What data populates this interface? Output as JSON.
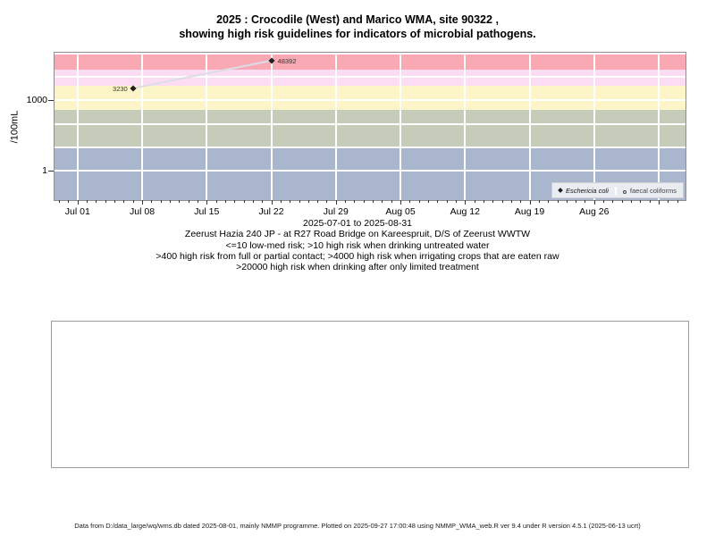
{
  "chart_data": {
    "type": "scatter",
    "title_line1": "2025 : Crocodile (West) and Marico WMA, site 90322 ,",
    "title_line2": "showing high risk guidelines for indicators of microbial pathogens.",
    "ylabel": "/100mL",
    "xlabel": "2025-07-01 to 2025-08-31",
    "y_scale": "log10",
    "y_domain_log10": [
      -1.24,
      5.02
    ],
    "x_domain_days": [
      -2.5,
      65.9
    ],
    "grid": "on",
    "grid_decades_log10": [
      0,
      1,
      2,
      3,
      4,
      5
    ],
    "y_ticks": [
      {
        "value": 1000,
        "label": "1000"
      },
      {
        "value": 1,
        "label": "1"
      }
    ],
    "x_ticks": [
      {
        "day": 0,
        "label": "Jul 01"
      },
      {
        "day": 7,
        "label": "Jul 08"
      },
      {
        "day": 14,
        "label": "Jul 15"
      },
      {
        "day": 21,
        "label": "Jul 22"
      },
      {
        "day": 28,
        "label": "Jul 29"
      },
      {
        "day": 35,
        "label": "Aug 05"
      },
      {
        "day": 42,
        "label": "Aug 12"
      },
      {
        "day": 49,
        "label": "Aug 19"
      },
      {
        "day": 56,
        "label": "Aug 26"
      },
      {
        "day": 63,
        "label": ""
      }
    ],
    "risk_bands": [
      {
        "range": "<=10 low-med risk",
        "from": null,
        "to": 10,
        "color": "#a9b6ce"
      },
      {
        "range": ">10 high risk drinking untreated water",
        "from": 10,
        "to": 400,
        "color": "#c5ccb9"
      },
      {
        "range": ">400 high risk full or partial contact",
        "from": 400,
        "to": 4000,
        "color": "#fbf5c8"
      },
      {
        "range": ">4000 high risk irrigating crops eaten raw",
        "from": 4000,
        "to": 20000,
        "color": "#fcdcf3"
      },
      {
        "range": ">20000 high risk drinking after only limited treatment",
        "from": 20000,
        "to": null,
        "color": "#f8a9b3"
      }
    ],
    "series": [
      {
        "name": "Eschericia coli",
        "marker": "filled-diamond",
        "points": [
          {
            "date": "2025-07-07",
            "day": 6,
            "value": 3230,
            "label": "3230",
            "label_side": "left"
          },
          {
            "date": "2025-07-22",
            "day": 21,
            "value": 48392,
            "label": "48392",
            "label_side": "right"
          }
        ]
      },
      {
        "name": "faecal coliforms",
        "marker": "open-circle",
        "points": []
      }
    ],
    "line_color": "#dcdce6",
    "marker_color": "#1f1f1f",
    "legend_position": "bottom-right-inside",
    "annotations": {
      "site": "Zeerust Hazia 240 JP - at R27 Road Bridge on Kareespruit, D/S of Zeerust WWTW",
      "guide1": "<=10 low-med risk; >10 high risk when drinking untreated water",
      "guide2": ">400 high risk from full or partial contact; >4000 high risk when irrigating crops that are eaten raw",
      "guide3": ">20000 high risk when drinking after only limited treatment"
    }
  },
  "footer": "Data from D:/data_large/wq/wms.db dated 2025-08-01, mainly NMMP programme. Plotted on 2025-09-27 17:00:48 using NMMP_WMA_web.R ver 9.4 under R version 4.5.1 (2025-06-13 ucrt)"
}
